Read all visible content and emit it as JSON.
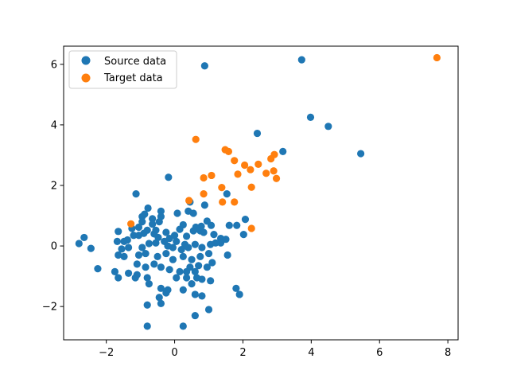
{
  "chart_data": {
    "type": "scatter",
    "title": "",
    "xlabel": "",
    "ylabel": "",
    "xlim": [
      -3.25,
      8.3
    ],
    "ylim": [
      -3.1,
      6.6
    ],
    "xticks": [
      -2,
      0,
      2,
      4,
      6,
      8
    ],
    "yticks": [
      -2,
      0,
      2,
      4,
      6
    ],
    "grid": false,
    "legend_position": "top-left",
    "series": [
      {
        "name": "Source data",
        "color": "#1f77b4",
        "points": [
          [
            0.88,
            5.95
          ],
          [
            3.72,
            6.15
          ],
          [
            3.98,
            4.25
          ],
          [
            4.5,
            3.95
          ],
          [
            5.45,
            3.05
          ],
          [
            2.42,
            3.72
          ],
          [
            3.17,
            3.12
          ],
          [
            -0.18,
            2.27
          ],
          [
            -1.13,
            1.72
          ],
          [
            1.53,
            1.72
          ],
          [
            0.45,
            1.45
          ],
          [
            0.88,
            1.35
          ],
          [
            2.07,
            0.88
          ],
          [
            1.82,
            0.68
          ],
          [
            2.02,
            0.38
          ],
          [
            1.6,
            0.68
          ],
          [
            1.07,
            0.68
          ],
          [
            0.78,
            0.65
          ],
          [
            0.95,
            0.82
          ],
          [
            0.62,
            0.62
          ],
          [
            0.4,
            1.15
          ],
          [
            0.55,
            1.08
          ],
          [
            0.08,
            1.08
          ],
          [
            -0.4,
            1.15
          ],
          [
            -0.4,
            0.97
          ],
          [
            -0.78,
            1.25
          ],
          [
            -0.88,
            1.05
          ],
          [
            -0.95,
            0.97
          ],
          [
            -0.65,
            0.9
          ],
          [
            -0.45,
            0.8
          ],
          [
            -0.65,
            0.72
          ],
          [
            -0.95,
            0.8
          ],
          [
            -1.05,
            0.62
          ],
          [
            -1.25,
            0.58
          ],
          [
            -0.8,
            0.52
          ],
          [
            -0.55,
            0.52
          ],
          [
            -0.9,
            0.42
          ],
          [
            -1.2,
            0.35
          ],
          [
            -1.05,
            0.35
          ],
          [
            -1.65,
            0.48
          ],
          [
            -1.48,
            0.15
          ],
          [
            -1.68,
            0.15
          ],
          [
            -1.38,
            0.2
          ],
          [
            -0.48,
            0.28
          ],
          [
            -0.25,
            0.45
          ],
          [
            -0.15,
            0.25
          ],
          [
            0.0,
            0.35
          ],
          [
            0.05,
            0.15
          ],
          [
            0.3,
            0.05
          ],
          [
            0.35,
            0.32
          ],
          [
            0.55,
            0.5
          ],
          [
            0.75,
            0.5
          ],
          [
            0.85,
            0.45
          ],
          [
            1.15,
            0.38
          ],
          [
            1.35,
            0.25
          ],
          [
            1.5,
            0.22
          ],
          [
            1.35,
            0.1
          ],
          [
            1.05,
            0.05
          ],
          [
            0.8,
            -0.05
          ],
          [
            0.6,
            0.05
          ],
          [
            0.4,
            -0.05
          ],
          [
            0.2,
            -0.12
          ],
          [
            -0.05,
            -0.05
          ],
          [
            -0.3,
            0.15
          ],
          [
            -0.55,
            0.1
          ],
          [
            -0.75,
            0.08
          ],
          [
            -0.95,
            -0.05
          ],
          [
            -1.05,
            -0.3
          ],
          [
            -1.35,
            -0.05
          ],
          [
            -1.55,
            -0.1
          ],
          [
            -1.65,
            -0.3
          ],
          [
            -1.48,
            -0.35
          ],
          [
            -0.85,
            -0.25
          ],
          [
            -0.5,
            -0.35
          ],
          [
            -0.25,
            -0.25
          ],
          [
            -0.05,
            -0.45
          ],
          [
            0.25,
            -0.35
          ],
          [
            0.5,
            -0.45
          ],
          [
            0.75,
            -0.35
          ],
          [
            1.0,
            -0.25
          ],
          [
            1.1,
            -0.55
          ],
          [
            1.55,
            -0.3
          ],
          [
            0.95,
            -0.7
          ],
          [
            0.7,
            -0.65
          ],
          [
            0.45,
            -0.7
          ],
          [
            0.35,
            -0.85
          ],
          [
            0.15,
            -0.85
          ],
          [
            -0.15,
            -0.78
          ],
          [
            -0.4,
            -0.7
          ],
          [
            -0.6,
            -0.6
          ],
          [
            -0.85,
            -0.7
          ],
          [
            -1.1,
            -0.6
          ],
          [
            -1.35,
            -0.9
          ],
          [
            -1.1,
            -0.95
          ],
          [
            -0.8,
            -1.05
          ],
          [
            -1.75,
            -0.85
          ],
          [
            -1.65,
            -1.05
          ],
          [
            -1.15,
            -1.05
          ],
          [
            -0.75,
            -1.25
          ],
          [
            0.05,
            -1.05
          ],
          [
            0.35,
            -1.05
          ],
          [
            0.65,
            -1.05
          ],
          [
            0.8,
            -1.1
          ],
          [
            1.05,
            -1.15
          ],
          [
            0.5,
            -1.25
          ],
          [
            0.25,
            -1.45
          ],
          [
            -0.2,
            -1.45
          ],
          [
            -0.4,
            -1.4
          ],
          [
            -0.25,
            -1.55
          ],
          [
            0.6,
            -1.6
          ],
          [
            0.8,
            -1.65
          ],
          [
            -0.45,
            -1.7
          ],
          [
            -0.4,
            -1.9
          ],
          [
            -0.8,
            -1.95
          ],
          [
            1.0,
            -2.1
          ],
          [
            0.6,
            -2.3
          ],
          [
            0.25,
            -2.65
          ],
          [
            -0.8,
            -2.65
          ],
          [
            1.8,
            -1.4
          ],
          [
            1.9,
            -1.6
          ],
          [
            -2.25,
            -0.75
          ],
          [
            -2.45,
            -0.08
          ],
          [
            -2.65,
            0.28
          ],
          [
            -2.8,
            0.08
          ],
          [
            0.6,
            -0.85
          ],
          [
            -0.2,
            0.0
          ],
          [
            0.15,
            0.55
          ],
          [
            -0.6,
            0.4
          ],
          [
            0.25,
            0.7
          ],
          [
            1.2,
            0.1
          ]
        ]
      },
      {
        "name": "Target data",
        "color": "#ff7f0e",
        "points": [
          [
            7.68,
            6.22
          ],
          [
            0.62,
            3.52
          ],
          [
            1.48,
            3.18
          ],
          [
            1.58,
            3.12
          ],
          [
            1.75,
            2.82
          ],
          [
            2.92,
            3.02
          ],
          [
            2.82,
            2.88
          ],
          [
            2.05,
            2.67
          ],
          [
            2.22,
            2.52
          ],
          [
            2.45,
            2.7
          ],
          [
            1.85,
            2.37
          ],
          [
            1.08,
            2.33
          ],
          [
            0.85,
            2.25
          ],
          [
            2.68,
            2.4
          ],
          [
            2.9,
            2.48
          ],
          [
            2.98,
            2.23
          ],
          [
            2.25,
            1.94
          ],
          [
            1.38,
            1.93
          ],
          [
            0.85,
            1.72
          ],
          [
            1.4,
            1.45
          ],
          [
            1.75,
            1.45
          ],
          [
            0.42,
            1.5
          ],
          [
            -1.28,
            0.73
          ],
          [
            2.25,
            0.58
          ]
        ]
      }
    ]
  }
}
